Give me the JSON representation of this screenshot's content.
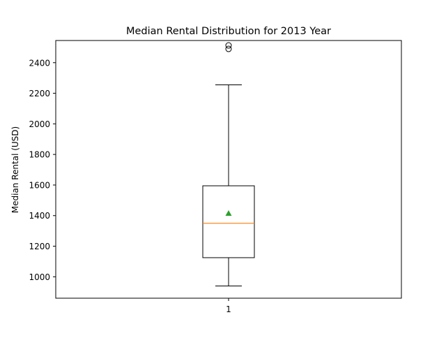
{
  "chart_data": {
    "type": "box",
    "title": "Median Rental Distribution for 2013 Year",
    "xlabel": "",
    "ylabel": "Median Rental (USD)",
    "categories": [
      "1"
    ],
    "ylim": [
      860,
      2545
    ],
    "yticks": [
      1000,
      1200,
      1400,
      1600,
      1800,
      2000,
      2200,
      2400
    ],
    "grid": false,
    "boxes": [
      {
        "label": "1",
        "whisker_low": 940,
        "q1": 1125,
        "median": 1350,
        "mean": 1415,
        "q3": 1595,
        "whisker_high": 2255,
        "outliers": [
          2490,
          2513
        ]
      }
    ],
    "colors": {
      "box": "#000000",
      "median": "#ff7f0e",
      "mean": "#2ca02c",
      "outlier": "#000000"
    }
  }
}
